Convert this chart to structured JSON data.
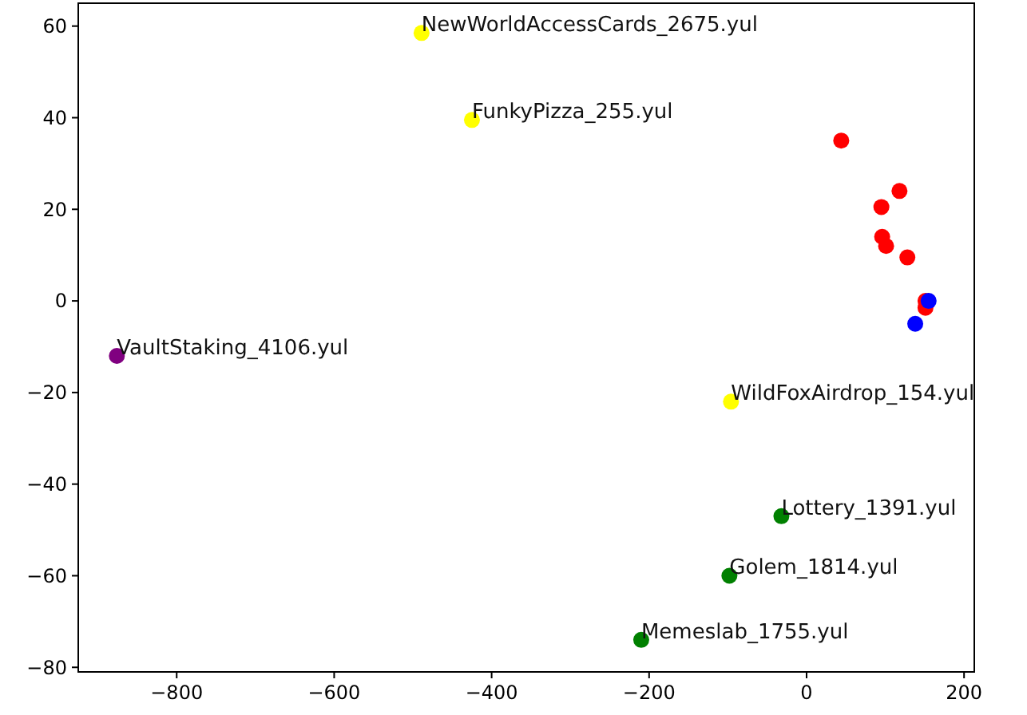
{
  "chart_data": {
    "type": "scatter",
    "marker": "circle",
    "xlim": [
      -925,
      213
    ],
    "ylim": [
      -81,
      65
    ],
    "xticks": [
      -800,
      -600,
      -400,
      -200,
      0,
      200
    ],
    "yticks": [
      -80,
      -60,
      -40,
      -20,
      0,
      20,
      40,
      60
    ],
    "series": [
      {
        "color": "#ff0000",
        "x": [
          44,
          118,
          95,
          96,
          101,
          128,
          151,
          151
        ],
        "values": [
          35,
          24,
          20.5,
          14,
          12,
          9.5,
          0,
          -1.5
        ]
      },
      {
        "color": "#0000ff",
        "x": [
          155,
          138
        ],
        "values": [
          0,
          -5
        ]
      },
      {
        "color": "#ffff00",
        "x": [
          -489,
          -425,
          -96
        ],
        "values": [
          58.5,
          39.5,
          -22
        ]
      },
      {
        "color": "#800080",
        "x": [
          -876
        ],
        "values": [
          -12
        ]
      },
      {
        "color": "#008000",
        "x": [
          -32,
          -98,
          -210
        ],
        "values": [
          -47,
          -60,
          -74
        ]
      }
    ],
    "annotations": [
      {
        "text": "NewWorldAccessCards_2675.yul",
        "x": -489,
        "y": 58.5
      },
      {
        "text": "FunkyPizza_255.yul",
        "x": -425,
        "y": 39.5
      },
      {
        "text": "WildFoxAirdrop_154.yul",
        "x": -96,
        "y": -22
      },
      {
        "text": "VaultStaking_4106.yul",
        "x": -876,
        "y": -12
      },
      {
        "text": "Lottery_1391.yul",
        "x": -32,
        "y": -47
      },
      {
        "text": "Golem_1814.yul",
        "x": -98,
        "y": -60
      },
      {
        "text": "Memeslab_1755.yul",
        "x": -210,
        "y": -74
      }
    ]
  }
}
